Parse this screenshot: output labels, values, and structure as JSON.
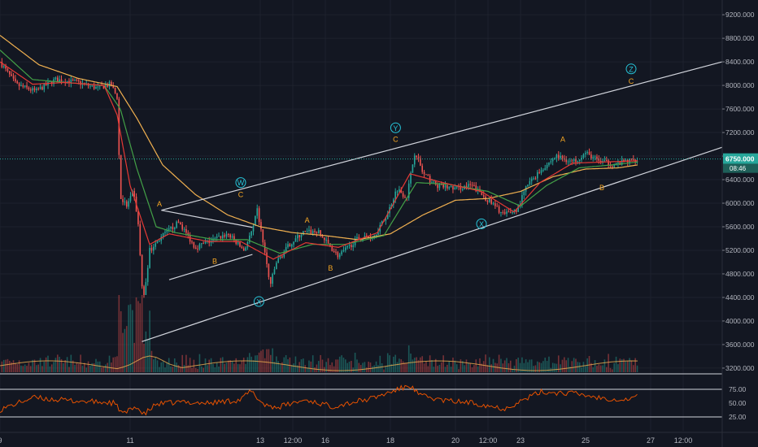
{
  "chart_data": {
    "type": "candlestick",
    "price_axis_labels": [
      "9200.000",
      "8800.000",
      "8400.000",
      "8000.000",
      "7600.000",
      "7200.000",
      "6800.000",
      "6400.000",
      "6000.000",
      "5600.000",
      "5200.000",
      "4800.000",
      "4400.000",
      "4000.000",
      "3600.000",
      "3200.000"
    ],
    "price_axis_values": [
      9200,
      8800,
      8400,
      8000,
      7600,
      7200,
      6800,
      6400,
      6000,
      5600,
      5200,
      4800,
      4400,
      4000,
      3600,
      3200
    ],
    "price_ylim": [
      3130,
      9450
    ],
    "time_axis_labels": [
      "9",
      "11",
      "13",
      "12:00",
      "16",
      "18",
      "20",
      "12:00",
      "23",
      "25",
      "27",
      "12:00"
    ],
    "time_axis_positions": [
      0,
      2,
      4,
      4.5,
      5,
      6,
      7,
      7.5,
      8,
      9,
      10,
      10.5
    ],
    "xlim": [
      0,
      11.1
    ],
    "current_price": "6750.000",
    "countdown": "08:46",
    "current_price_value": 6750,
    "rsi_axis_labels": [
      "75.00",
      "50.00",
      "25.00"
    ],
    "rsi_axis_values": [
      75,
      50,
      25
    ],
    "rsi_ylim": [
      0,
      100
    ],
    "price_keypoints": [
      [
        0,
        8400
      ],
      [
        0.25,
        8010
      ],
      [
        0.55,
        7900
      ],
      [
        0.85,
        8100
      ],
      [
        1.2,
        8050
      ],
      [
        1.5,
        7950
      ],
      [
        1.7,
        8020
      ],
      [
        1.8,
        7800
      ],
      [
        1.85,
        6100
      ],
      [
        1.95,
        5950
      ],
      [
        2.05,
        6200
      ],
      [
        2.12,
        5700
      ],
      [
        2.2,
        4300
      ],
      [
        2.3,
        5200
      ],
      [
        2.5,
        5450
      ],
      [
        2.75,
        5680
      ],
      [
        3.0,
        5250
      ],
      [
        3.5,
        5480
      ],
      [
        3.75,
        5200
      ],
      [
        3.9,
        5600
      ],
      [
        3.95,
        5900
      ],
      [
        4.05,
        5300
      ],
      [
        4.15,
        4600
      ],
      [
        4.25,
        5000
      ],
      [
        4.45,
        5300
      ],
      [
        4.65,
        5500
      ],
      [
        4.88,
        5520
      ],
      [
        5.2,
        5100
      ],
      [
        5.5,
        5400
      ],
      [
        5.75,
        5450
      ],
      [
        5.95,
        5800
      ],
      [
        6.1,
        6250
      ],
      [
        6.25,
        6100
      ],
      [
        6.38,
        6900
      ],
      [
        6.5,
        6500
      ],
      [
        6.7,
        6300
      ],
      [
        7.0,
        6250
      ],
      [
        7.25,
        6300
      ],
      [
        7.5,
        6050
      ],
      [
        7.75,
        5800
      ],
      [
        7.95,
        5900
      ],
      [
        8.1,
        6300
      ],
      [
        8.3,
        6550
      ],
      [
        8.55,
        6800
      ],
      [
        8.8,
        6700
      ],
      [
        9.0,
        6850
      ],
      [
        9.2,
        6720
      ],
      [
        9.45,
        6650
      ],
      [
        9.65,
        6720
      ],
      [
        9.8,
        6750
      ]
    ],
    "rsi_keypoints": [
      [
        0,
        38
      ],
      [
        0.5,
        60
      ],
      [
        1.0,
        55
      ],
      [
        1.5,
        52
      ],
      [
        1.75,
        50
      ],
      [
        1.9,
        30
      ],
      [
        2.1,
        45
      ],
      [
        2.2,
        28
      ],
      [
        2.4,
        48
      ],
      [
        2.8,
        52
      ],
      [
        3.2,
        50
      ],
      [
        3.7,
        56
      ],
      [
        3.85,
        72
      ],
      [
        4.05,
        48
      ],
      [
        4.25,
        42
      ],
      [
        4.7,
        56
      ],
      [
        5.1,
        44
      ],
      [
        5.7,
        58
      ],
      [
        6.3,
        82
      ],
      [
        6.45,
        64
      ],
      [
        6.8,
        55
      ],
      [
        7.3,
        50
      ],
      [
        7.75,
        40
      ],
      [
        8.05,
        56
      ],
      [
        8.3,
        70
      ],
      [
        8.8,
        68
      ],
      [
        9.2,
        60
      ],
      [
        9.6,
        56
      ],
      [
        9.8,
        62
      ]
    ],
    "ema_fast_keypoints": [
      [
        0,
        8400
      ],
      [
        0.5,
        8020
      ],
      [
        1.0,
        8050
      ],
      [
        1.6,
        8000
      ],
      [
        1.8,
        7500
      ],
      [
        2.0,
        6300
      ],
      [
        2.3,
        5300
      ],
      [
        2.6,
        5480
      ],
      [
        3.2,
        5350
      ],
      [
        3.7,
        5350
      ],
      [
        4.2,
        5050
      ],
      [
        4.7,
        5330
      ],
      [
        5.2,
        5250
      ],
      [
        5.8,
        5500
      ],
      [
        6.3,
        6500
      ],
      [
        6.8,
        6350
      ],
      [
        7.4,
        6200
      ],
      [
        7.9,
        5850
      ],
      [
        8.3,
        6350
      ],
      [
        8.8,
        6680
      ],
      [
        9.3,
        6700
      ],
      [
        9.8,
        6720
      ]
    ],
    "ema_mid_keypoints": [
      [
        0,
        8600
      ],
      [
        0.5,
        8100
      ],
      [
        1.0,
        8050
      ],
      [
        1.6,
        8000
      ],
      [
        1.85,
        7600
      ],
      [
        2.1,
        6600
      ],
      [
        2.4,
        5600
      ],
      [
        2.7,
        5500
      ],
      [
        3.3,
        5380
      ],
      [
        3.8,
        5380
      ],
      [
        4.3,
        5150
      ],
      [
        4.8,
        5300
      ],
      [
        5.3,
        5300
      ],
      [
        5.9,
        5450
      ],
      [
        6.4,
        6350
      ],
      [
        6.9,
        6320
      ],
      [
        7.5,
        6200
      ],
      [
        8.0,
        5950
      ],
      [
        8.4,
        6300
      ],
      [
        8.9,
        6600
      ],
      [
        9.4,
        6650
      ],
      [
        9.8,
        6700
      ]
    ],
    "ma_slow_keypoints": [
      [
        0,
        8850
      ],
      [
        0.6,
        8350
      ],
      [
        1.2,
        8120
      ],
      [
        1.8,
        7980
      ],
      [
        2.1,
        7450
      ],
      [
        2.5,
        6650
      ],
      [
        3.0,
        6150
      ],
      [
        3.5,
        5800
      ],
      [
        4.0,
        5600
      ],
      [
        4.5,
        5500
      ],
      [
        5.0,
        5450
      ],
      [
        5.5,
        5380
      ],
      [
        6.0,
        5480
      ],
      [
        6.5,
        5800
      ],
      [
        7.0,
        6050
      ],
      [
        7.5,
        6080
      ],
      [
        8.0,
        6200
      ],
      [
        8.5,
        6450
      ],
      [
        9.0,
        6580
      ],
      [
        9.5,
        6600
      ],
      [
        9.8,
        6650
      ]
    ],
    "channels": [
      {
        "name": "lower-channel-line",
        "from": [
          2.18,
          3650
        ],
        "to": [
          11.1,
          6950
        ]
      },
      {
        "name": "upper-channel-line",
        "from": [
          2.48,
          5880
        ],
        "to": [
          11.1,
          8400
        ]
      },
      {
        "name": "triangle-upper-line",
        "from": [
          2.48,
          5880
        ],
        "to": [
          3.88,
          5590
        ]
      },
      {
        "name": "triangle-lower-line",
        "from": [
          2.6,
          4700
        ],
        "to": [
          3.88,
          5130
        ]
      }
    ],
    "wave_labels": [
      {
        "text": "A",
        "x": 2.45,
        "y": 5990,
        "color": "#f5a623",
        "circled": false
      },
      {
        "text": "B",
        "x": 3.3,
        "y": 5020,
        "color": "#f5a623",
        "circled": false
      },
      {
        "text": "C",
        "x": 3.7,
        "y": 6150,
        "color": "#f5a623",
        "circled": false
      },
      {
        "text": "W",
        "x": 3.7,
        "y": 6350,
        "color": "#26c6da",
        "circled": true
      },
      {
        "text": "X",
        "x": 3.98,
        "y": 4330,
        "color": "#26c6da",
        "circled": true
      },
      {
        "text": "A",
        "x": 4.72,
        "y": 5720,
        "color": "#f5a623",
        "circled": false
      },
      {
        "text": "B",
        "x": 5.08,
        "y": 4900,
        "color": "#f5a623",
        "circled": false
      },
      {
        "text": "C",
        "x": 6.08,
        "y": 7090,
        "color": "#f5a623",
        "circled": false
      },
      {
        "text": "Y",
        "x": 6.08,
        "y": 7280,
        "color": "#26c6da",
        "circled": true
      },
      {
        "text": "X",
        "x": 7.4,
        "y": 5650,
        "color": "#26c6da",
        "circled": true
      },
      {
        "text": "A",
        "x": 8.65,
        "y": 7090,
        "color": "#f5a623",
        "circled": false
      },
      {
        "text": "B",
        "x": 9.25,
        "y": 6270,
        "color": "#f5a623",
        "circled": false
      },
      {
        "text": "C",
        "x": 9.7,
        "y": 8080,
        "color": "#f5a623",
        "circled": false
      },
      {
        "text": "Z",
        "x": 9.7,
        "y": 8280,
        "color": "#26c6da",
        "circled": true
      }
    ],
    "colors": {
      "background": "#131722",
      "up": "#26a69a",
      "down": "#ef5350",
      "ema_fast": "#e53935",
      "ema_mid": "#43a047",
      "ma_slow": "#f0b050",
      "channel": "#d1d4dc",
      "rsi": "#e65100",
      "axis_text": "#b2b5be",
      "price_tag": "#26a69a"
    }
  }
}
